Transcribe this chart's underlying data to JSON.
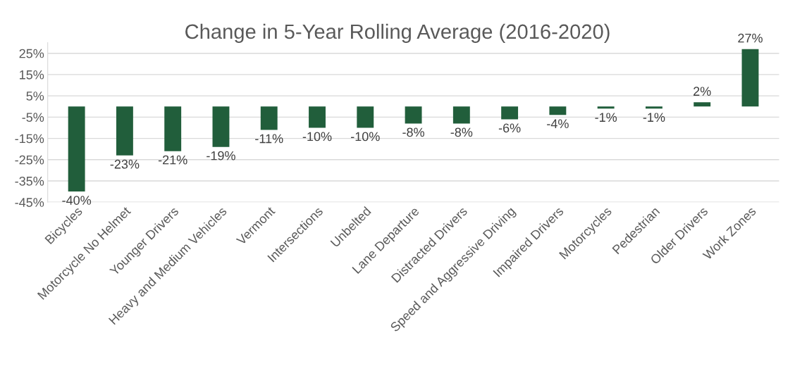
{
  "chart_data": {
    "type": "bar",
    "title": "Change in 5-Year Rolling Average (2016-2020)",
    "categories": [
      "Bicycles",
      "Motorcycle No Helmet",
      "Younger Drivers",
      "Heavy and Medium Vehicles",
      "Vermont",
      "Intersections",
      "Unbelted",
      "Lane Departure",
      "Distracted Drivers",
      "Speed and Aggressive Driving",
      "Impaired Drivers",
      "Motorcycles",
      "Pedestrian",
      "Older Drivers",
      "Work Zones"
    ],
    "values": [
      -40,
      -23,
      -21,
      -19,
      -11,
      -10,
      -10,
      -8,
      -8,
      -6,
      -4,
      -1,
      -1,
      2,
      27
    ],
    "value_labels": [
      "-40%",
      "-23%",
      "-21%",
      "-19%",
      "-11%",
      "-10%",
      "-10%",
      "-8%",
      "-8%",
      "-6%",
      "-4%",
      "-1%",
      "-1%",
      "2%",
      "27%"
    ],
    "color": "#215e3b",
    "ylim": [
      -45,
      30
    ],
    "yticks": [
      {
        "value": -45,
        "label": "-45%"
      },
      {
        "value": -35,
        "label": "-35%"
      },
      {
        "value": -25,
        "label": "-25%"
      },
      {
        "value": -15,
        "label": "-15%"
      },
      {
        "value": -5,
        "label": "-5%"
      },
      {
        "value": 5,
        "label": "5%"
      },
      {
        "value": 15,
        "label": "15%"
      },
      {
        "value": 25,
        "label": "25%"
      }
    ],
    "grid": "y",
    "legend": false
  }
}
